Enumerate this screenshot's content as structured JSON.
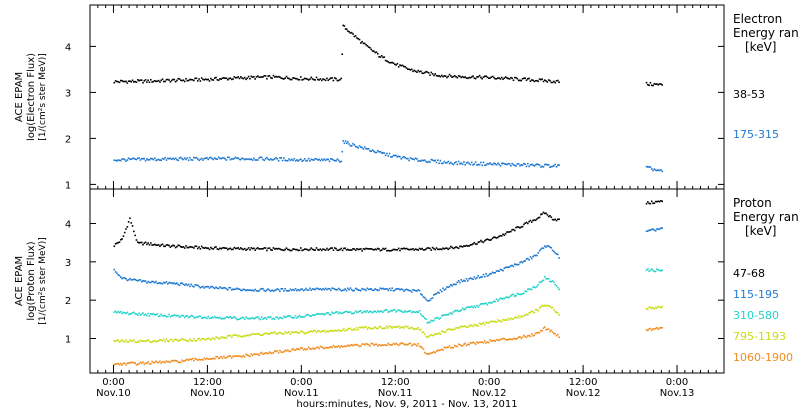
{
  "chart_data": [
    {
      "type": "scatter",
      "panel": "electron",
      "ylabel_lines": [
        "ACE EPAM",
        "log(Electron Flux)",
        "[1/(cm²s ster MeV)]"
      ],
      "ylim": [
        0.9,
        4.9
      ],
      "yticks": [
        1,
        2,
        3,
        4
      ],
      "legend_title_lines": [
        "Electron",
        "Energy ran",
        "[keV]"
      ],
      "legend_placement": "right",
      "series": [
        {
          "name": "38-53",
          "color": "#000000",
          "points": [
            [
              0,
              3.25
            ],
            [
              8,
              3.26
            ],
            [
              16,
              3.28
            ],
            [
              24,
              3.3
            ],
            [
              32,
              3.33
            ],
            [
              40,
              3.35
            ],
            [
              48,
              3.32
            ],
            [
              56,
              3.3
            ],
            [
              58,
              3.3
            ],
            [
              58.5,
              4.45
            ],
            [
              60,
              4.35
            ],
            [
              64,
              4.05
            ],
            [
              68,
              3.8
            ],
            [
              72,
              3.62
            ],
            [
              76,
              3.5
            ],
            [
              80,
              3.43
            ],
            [
              84,
              3.38
            ],
            [
              88,
              3.36
            ],
            [
              92,
              3.35
            ],
            [
              96,
              3.34
            ],
            [
              100,
              3.32
            ],
            [
              104,
              3.3
            ],
            [
              108,
              3.28
            ],
            [
              112,
              3.26
            ],
            [
              114,
              3.25
            ],
            [
              136,
              3.2
            ],
            [
              140,
              3.18
            ]
          ],
          "gaps_after": [
            114
          ]
        },
        {
          "name": "175-315",
          "color": "#1e78d2",
          "points": [
            [
              0,
              1.55
            ],
            [
              8,
              1.56
            ],
            [
              16,
              1.57
            ],
            [
              24,
              1.57
            ],
            [
              32,
              1.58
            ],
            [
              40,
              1.57
            ],
            [
              48,
              1.55
            ],
            [
              56,
              1.54
            ],
            [
              58,
              1.54
            ],
            [
              58.5,
              1.95
            ],
            [
              60,
              1.9
            ],
            [
              64,
              1.8
            ],
            [
              68,
              1.7
            ],
            [
              72,
              1.62
            ],
            [
              76,
              1.56
            ],
            [
              80,
              1.53
            ],
            [
              84,
              1.5
            ],
            [
              88,
              1.48
            ],
            [
              92,
              1.47
            ],
            [
              96,
              1.46
            ],
            [
              100,
              1.45
            ],
            [
              104,
              1.44
            ],
            [
              108,
              1.43
            ],
            [
              112,
              1.42
            ],
            [
              114,
              1.42
            ],
            [
              136,
              1.38
            ],
            [
              140,
              1.3
            ]
          ],
          "gaps_after": [
            114
          ]
        }
      ]
    },
    {
      "type": "scatter",
      "panel": "proton",
      "ylabel_lines": [
        "ACE EPAM",
        "log(Proton Flux)",
        "[1/(cm²s ster MeV)]"
      ],
      "ylim": [
        0.1,
        4.9
      ],
      "yticks": [
        1,
        2,
        3,
        4
      ],
      "legend_title_lines": [
        "Proton",
        "Energy ran",
        "[keV]"
      ],
      "legend_placement": "right",
      "series": [
        {
          "name": "47-68",
          "color": "#000000",
          "points": [
            [
              0,
              3.45
            ],
            [
              2,
              3.6
            ],
            [
              4,
              4.15
            ],
            [
              6,
              3.5
            ],
            [
              8,
              3.5
            ],
            [
              12,
              3.45
            ],
            [
              16,
              3.42
            ],
            [
              24,
              3.38
            ],
            [
              32,
              3.36
            ],
            [
              40,
              3.35
            ],
            [
              48,
              3.35
            ],
            [
              56,
              3.35
            ],
            [
              64,
              3.34
            ],
            [
              72,
              3.34
            ],
            [
              80,
              3.35
            ],
            [
              88,
              3.4
            ],
            [
              92,
              3.5
            ],
            [
              96,
              3.6
            ],
            [
              100,
              3.75
            ],
            [
              104,
              3.95
            ],
            [
              108,
              4.15
            ],
            [
              110,
              4.3
            ],
            [
              112,
              4.15
            ],
            [
              114,
              4.1
            ],
            [
              136,
              4.55
            ],
            [
              140,
              4.6
            ]
          ],
          "gaps_after": [
            114
          ]
        },
        {
          "name": "115-195",
          "color": "#1e78d2",
          "points": [
            [
              0,
              2.8
            ],
            [
              2,
              2.6
            ],
            [
              4,
              2.55
            ],
            [
              8,
              2.5
            ],
            [
              16,
              2.45
            ],
            [
              24,
              2.35
            ],
            [
              32,
              2.3
            ],
            [
              40,
              2.28
            ],
            [
              48,
              2.3
            ],
            [
              56,
              2.3
            ],
            [
              64,
              2.3
            ],
            [
              72,
              2.3
            ],
            [
              78,
              2.25
            ],
            [
              80,
              2.0
            ],
            [
              84,
              2.3
            ],
            [
              88,
              2.5
            ],
            [
              92,
              2.6
            ],
            [
              96,
              2.7
            ],
            [
              100,
              2.85
            ],
            [
              104,
              3.0
            ],
            [
              108,
              3.2
            ],
            [
              110,
              3.45
            ],
            [
              112,
              3.35
            ],
            [
              114,
              3.1
            ],
            [
              136,
              3.8
            ],
            [
              140,
              3.9
            ]
          ],
          "gaps_after": [
            114
          ]
        },
        {
          "name": "310-580",
          "color": "#22d2c8",
          "points": [
            [
              0,
              1.7
            ],
            [
              8,
              1.65
            ],
            [
              16,
              1.6
            ],
            [
              24,
              1.58
            ],
            [
              32,
              1.55
            ],
            [
              40,
              1.55
            ],
            [
              48,
              1.6
            ],
            [
              56,
              1.68
            ],
            [
              64,
              1.72
            ],
            [
              72,
              1.75
            ],
            [
              78,
              1.72
            ],
            [
              80,
              1.45
            ],
            [
              84,
              1.6
            ],
            [
              88,
              1.75
            ],
            [
              92,
              1.85
            ],
            [
              96,
              1.95
            ],
            [
              100,
              2.1
            ],
            [
              104,
              2.2
            ],
            [
              108,
              2.4
            ],
            [
              110,
              2.6
            ],
            [
              112,
              2.5
            ],
            [
              114,
              2.3
            ],
            [
              136,
              2.8
            ],
            [
              140,
              2.8
            ]
          ],
          "gaps_after": [
            114
          ]
        },
        {
          "name": "795-1193",
          "color": "#c8dc14",
          "points": [
            [
              0,
              0.95
            ],
            [
              8,
              0.95
            ],
            [
              16,
              0.98
            ],
            [
              24,
              1.0
            ],
            [
              32,
              1.1
            ],
            [
              40,
              1.15
            ],
            [
              48,
              1.18
            ],
            [
              56,
              1.22
            ],
            [
              64,
              1.3
            ],
            [
              72,
              1.32
            ],
            [
              78,
              1.28
            ],
            [
              80,
              1.05
            ],
            [
              84,
              1.2
            ],
            [
              88,
              1.3
            ],
            [
              92,
              1.35
            ],
            [
              96,
              1.45
            ],
            [
              100,
              1.5
            ],
            [
              104,
              1.6
            ],
            [
              108,
              1.75
            ],
            [
              110,
              1.9
            ],
            [
              112,
              1.8
            ],
            [
              114,
              1.6
            ],
            [
              136,
              1.8
            ],
            [
              140,
              1.85
            ]
          ],
          "gaps_after": [
            114
          ]
        },
        {
          "name": "1060-1900",
          "color": "#f08c1e",
          "points": [
            [
              0,
              0.35
            ],
            [
              8,
              0.38
            ],
            [
              16,
              0.42
            ],
            [
              24,
              0.5
            ],
            [
              32,
              0.55
            ],
            [
              40,
              0.65
            ],
            [
              48,
              0.75
            ],
            [
              56,
              0.8
            ],
            [
              64,
              0.85
            ],
            [
              72,
              0.88
            ],
            [
              78,
              0.85
            ],
            [
              80,
              0.6
            ],
            [
              84,
              0.75
            ],
            [
              88,
              0.85
            ],
            [
              92,
              0.9
            ],
            [
              96,
              0.95
            ],
            [
              100,
              1.0
            ],
            [
              104,
              1.05
            ],
            [
              108,
              1.15
            ],
            [
              110,
              1.3
            ],
            [
              112,
              1.2
            ],
            [
              114,
              1.05
            ],
            [
              136,
              1.25
            ],
            [
              140,
              1.3
            ]
          ],
          "gaps_after": [
            114
          ]
        }
      ]
    }
  ],
  "x_axis": {
    "xlim_hours": [
      -6,
      156
    ],
    "ticks": [
      {
        "hour": 0,
        "time": "0:00",
        "date": "Nov.10"
      },
      {
        "hour": 24,
        "time": "12:00",
        "date": "Nov.10"
      },
      {
        "hour": 48,
        "time": "0:00",
        "date": "Nov.11"
      },
      {
        "hour": 72,
        "time": "12:00",
        "date": "Nov.11"
      },
      {
        "hour": 96,
        "time": "0:00",
        "date": "Nov.12"
      },
      {
        "hour": 120,
        "time": "12:00",
        "date": "Nov.12"
      },
      {
        "hour": 144,
        "time": "0:00",
        "date": "Nov.13"
      }
    ],
    "xlabel": "hours:minutes, Nov. 9, 2011 - Nov. 13, 2011"
  }
}
